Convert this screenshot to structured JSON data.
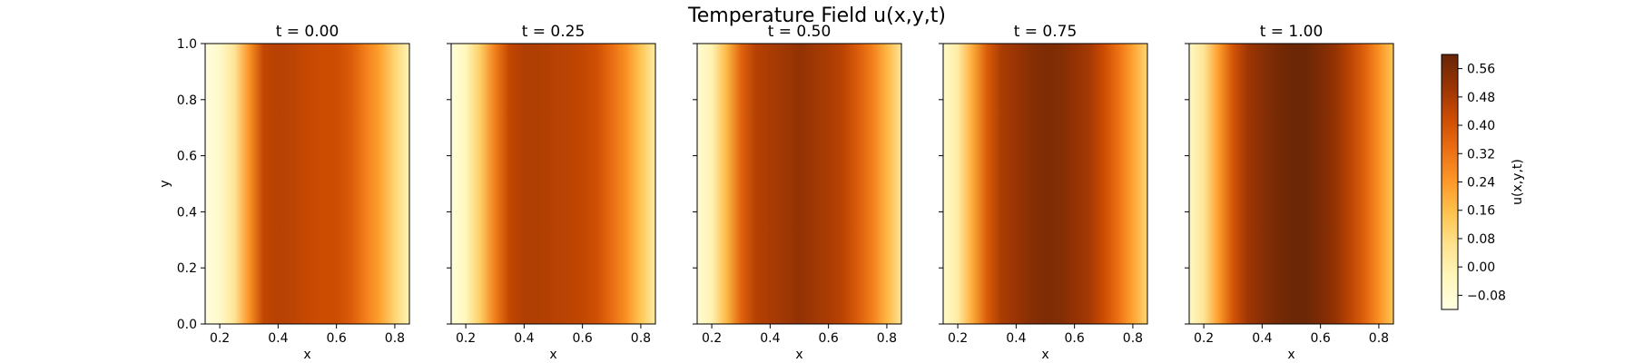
{
  "chart_data": {
    "type": "heatmap",
    "title": "Temperature Field u(x,y,t)",
    "xlabel": "x",
    "ylabel": "y",
    "xlim": [
      0.15,
      0.85
    ],
    "ylim": [
      0.0,
      1.0
    ],
    "xticks": [
      "0.2",
      "0.4",
      "0.6",
      "0.8"
    ],
    "yticks": [
      "0.0",
      "0.2",
      "0.4",
      "0.6",
      "0.8",
      "1.0"
    ],
    "panels": [
      {
        "title": "t = 0.00",
        "profile_x": [
          0.15,
          0.2,
          0.25,
          0.3,
          0.35,
          0.4,
          0.45,
          0.5,
          0.55,
          0.6,
          0.65,
          0.7,
          0.75,
          0.8,
          0.85
        ],
        "profile_u": [
          -0.1,
          -0.06,
          0.05,
          0.25,
          0.44,
          0.46,
          0.45,
          0.43,
          0.42,
          0.42,
          0.38,
          0.3,
          0.22,
          0.1,
          -0.02
        ]
      },
      {
        "title": "t = 0.25",
        "profile_x": [
          0.15,
          0.2,
          0.25,
          0.3,
          0.35,
          0.4,
          0.45,
          0.5,
          0.55,
          0.6,
          0.65,
          0.7,
          0.75,
          0.8,
          0.85
        ],
        "profile_u": [
          -0.1,
          -0.03,
          0.12,
          0.3,
          0.44,
          0.47,
          0.47,
          0.46,
          0.45,
          0.44,
          0.41,
          0.34,
          0.26,
          0.14,
          0.02
        ]
      },
      {
        "title": "t = 0.50",
        "profile_x": [
          0.15,
          0.2,
          0.25,
          0.3,
          0.35,
          0.4,
          0.45,
          0.5,
          0.55,
          0.6,
          0.65,
          0.7,
          0.75,
          0.8,
          0.85
        ],
        "profile_u": [
          -0.08,
          -0.01,
          0.17,
          0.36,
          0.46,
          0.48,
          0.5,
          0.52,
          0.5,
          0.48,
          0.45,
          0.38,
          0.3,
          0.18,
          0.05
        ]
      },
      {
        "title": "t = 0.75",
        "profile_x": [
          0.15,
          0.2,
          0.25,
          0.3,
          0.35,
          0.4,
          0.45,
          0.5,
          0.55,
          0.6,
          0.65,
          0.7,
          0.75,
          0.8,
          0.85
        ],
        "profile_u": [
          -0.06,
          0.02,
          0.2,
          0.38,
          0.48,
          0.51,
          0.54,
          0.56,
          0.55,
          0.52,
          0.49,
          0.42,
          0.33,
          0.22,
          0.1
        ]
      },
      {
        "title": "t = 1.00",
        "profile_x": [
          0.15,
          0.2,
          0.25,
          0.3,
          0.35,
          0.4,
          0.45,
          0.5,
          0.55,
          0.6,
          0.65,
          0.7,
          0.75,
          0.8,
          0.85
        ],
        "profile_u": [
          -0.05,
          0.05,
          0.23,
          0.4,
          0.5,
          0.54,
          0.57,
          0.59,
          0.59,
          0.56,
          0.52,
          0.45,
          0.37,
          0.26,
          0.14
        ]
      }
    ],
    "colorbar": {
      "label": "u(x,y,t)",
      "vmin": -0.12,
      "vmax": 0.6,
      "ticks": [
        -0.08,
        0.0,
        0.08,
        0.16,
        0.24,
        0.32,
        0.4,
        0.48,
        0.56
      ],
      "tick_labels": [
        "−0.08",
        "0.00",
        "0.08",
        "0.16",
        "0.24",
        "0.32",
        "0.40",
        "0.48",
        "0.56"
      ],
      "colormap": "YlOrBr",
      "colors": [
        "#ffffe5",
        "#fff7bc",
        "#fee391",
        "#fec44f",
        "#fe9929",
        "#ec7014",
        "#cc4c02",
        "#993404",
        "#662506"
      ]
    }
  }
}
